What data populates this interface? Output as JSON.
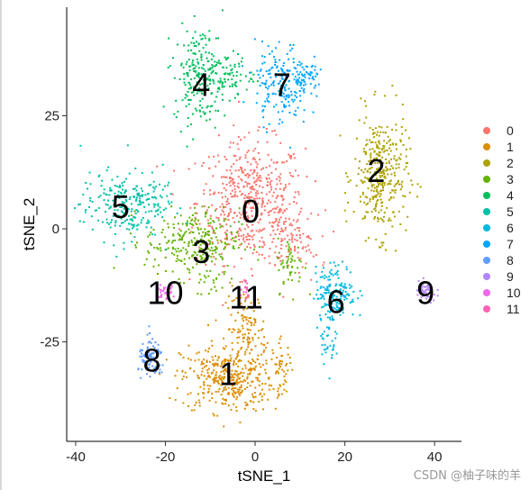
{
  "watermark": "CSDN @柚子味的羊",
  "chart_data": {
    "type": "scatter",
    "xlabel": "tSNE_1",
    "ylabel": "tSNE_2",
    "xlim": [
      -42,
      46
    ],
    "ylim": [
      -47,
      49
    ],
    "x_ticks": [
      -40,
      -20,
      0,
      20,
      40
    ],
    "y_ticks": [
      -25,
      0,
      25
    ],
    "grid": false,
    "legend_placement": "right",
    "series": [
      {
        "name": "0",
        "color": "#F8766D",
        "label": "0",
        "label_pos": [
          -1,
          4
        ]
      },
      {
        "name": "1",
        "color": "#DB8E00",
        "label": "1",
        "label_pos": [
          -6,
          -32
        ]
      },
      {
        "name": "2",
        "color": "#AEA200",
        "label": "2",
        "label_pos": [
          27,
          13
        ]
      },
      {
        "name": "3",
        "color": "#64B200",
        "label": "3",
        "label_pos": [
          -12,
          -5
        ]
      },
      {
        "name": "4",
        "color": "#00BD5C",
        "label": "4",
        "label_pos": [
          -12,
          32
        ]
      },
      {
        "name": "5",
        "color": "#00C1A7",
        "label": "5",
        "label_pos": [
          -30,
          5
        ]
      },
      {
        "name": "6",
        "color": "#00BADE",
        "label": "6",
        "label_pos": [
          18,
          -16
        ]
      },
      {
        "name": "7",
        "color": "#00A6FF",
        "label": "7",
        "label_pos": [
          6,
          32
        ]
      },
      {
        "name": "8",
        "color": "#619CFF",
        "label": "8",
        "label_pos": [
          -23,
          -29
        ]
      },
      {
        "name": "9",
        "color": "#B385FF",
        "label": "9",
        "label_pos": [
          38,
          -14
        ]
      },
      {
        "name": "10",
        "color": "#EF67EB",
        "label": "10",
        "label_pos": [
          -20,
          -14
        ]
      },
      {
        "name": "11",
        "color": "#FF63B6",
        "label": "11",
        "label_pos": [
          -2,
          -15
        ]
      }
    ]
  }
}
